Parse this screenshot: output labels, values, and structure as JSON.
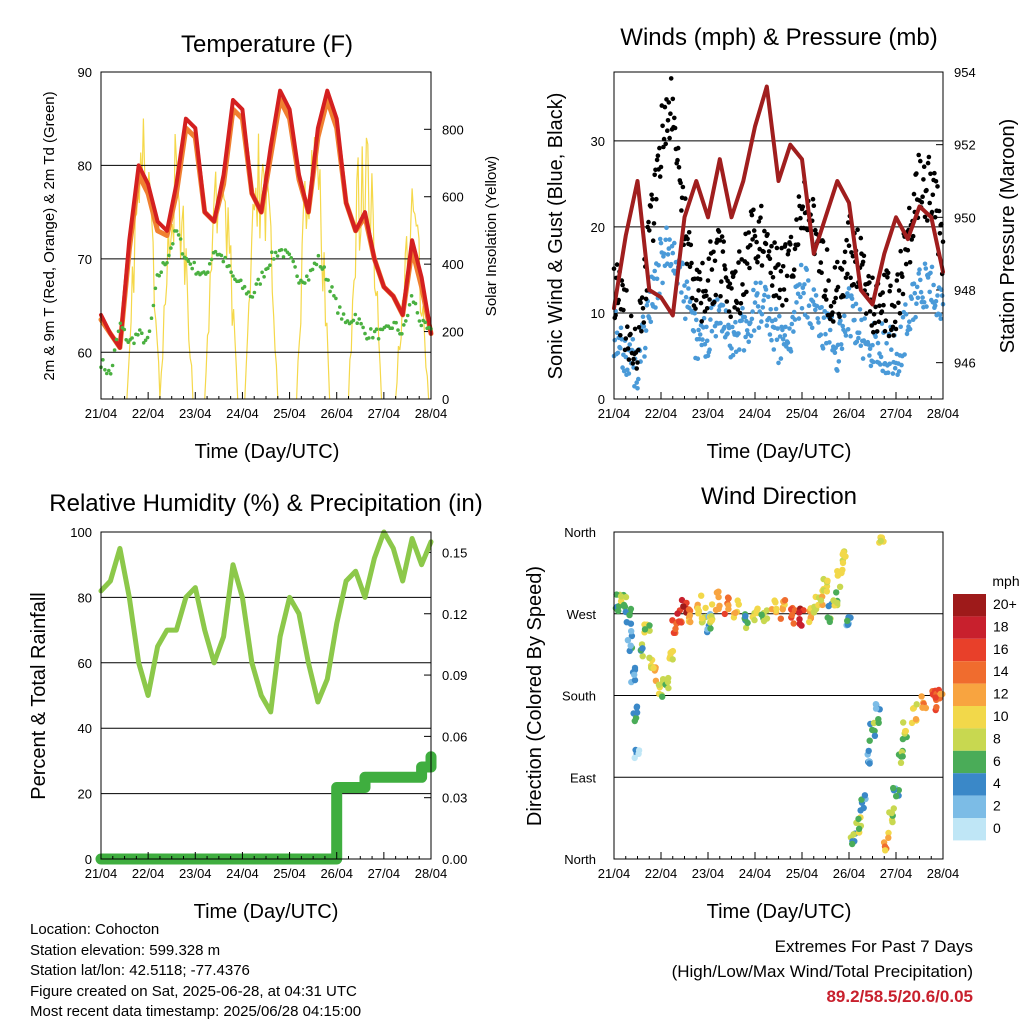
{
  "x_ticks": [
    "21/04",
    "22/04",
    "23/04",
    "24/04",
    "25/04",
    "26/04",
    "27/04",
    "28/04"
  ],
  "colors": {
    "temp2m": "#d42020",
    "temp9m": "#f08030",
    "dewpoint": "#4ab040",
    "solar": "#f5d84a",
    "gust": "#000000",
    "wind": "#4a9ad8",
    "pressure": "#a01e1e",
    "rh": "#8cc84a",
    "precip": "#3fae3f",
    "highlight": "#c8202d"
  },
  "info": {
    "location": "Location: Cohocton",
    "elevation": "Station elevation: 599.328 m",
    "latlon": "Station lat/lon: 42.5118; -77.4376",
    "created": "Figure created on Sat, 2025-06-28, at 04:31 UTC",
    "timestamp": "Most recent data timestamp: 2025/06/28 04:15:00"
  },
  "extremes": {
    "title": "Extremes For Past 7 Days",
    "subtitle": "(High/Low/Max Wind/Total Precipitation)",
    "values": "89.2/58.5/20.6/0.05"
  },
  "chart_data": [
    {
      "type": "line",
      "title": "Temperature (F)",
      "xlabel": "Time (Day/UTC)",
      "ylabel": "2m & 9m T (Red, Orange) & 2m Td (Green)",
      "y2label": "Solar Insolation (Yellow)",
      "ylim": [
        55,
        90
      ],
      "y2lim": [
        0,
        970
      ],
      "yticks": [
        "60",
        "70",
        "80",
        "90"
      ],
      "y2ticks": [
        "0",
        "200",
        "400",
        "600",
        "800"
      ],
      "x": [
        0,
        0.2,
        0.4,
        0.6,
        0.8,
        1.0,
        1.2,
        1.4,
        1.6,
        1.8,
        2.0,
        2.2,
        2.4,
        2.6,
        2.8,
        3.0,
        3.2,
        3.4,
        3.6,
        3.8,
        4.0,
        4.2,
        4.4,
        4.6,
        4.8,
        5.0,
        5.2,
        5.4,
        5.6,
        5.8,
        6.0,
        6.2,
        6.4,
        6.6,
        6.8,
        7.0
      ],
      "series": [
        {
          "name": "2m T",
          "values": [
            64,
            62,
            60.5,
            72,
            80,
            78,
            74,
            73,
            78,
            85,
            84,
            75,
            74,
            79,
            87,
            86,
            77,
            75,
            82,
            88,
            86,
            79,
            75,
            84,
            88,
            85,
            76,
            73,
            75,
            70,
            67,
            66,
            64,
            72,
            68,
            62
          ]
        },
        {
          "name": "9m T",
          "values": [
            63.5,
            62,
            60.5,
            71,
            79,
            77,
            73,
            72.5,
            77,
            84,
            83,
            75,
            74,
            78,
            86,
            85,
            77,
            75,
            81,
            87,
            85,
            78.5,
            75,
            83,
            87,
            84,
            76,
            73,
            74.5,
            70,
            67,
            66,
            64,
            71,
            67,
            62
          ]
        },
        {
          "name": "2m Td",
          "values": [
            59,
            57.5,
            63,
            61,
            62,
            61,
            68,
            70,
            73,
            70,
            69,
            68,
            71,
            70,
            68,
            67,
            66,
            68,
            70,
            71,
            70,
            68,
            68,
            70,
            68,
            65,
            63,
            64,
            62,
            62,
            62,
            63,
            62,
            66,
            63,
            62
          ]
        }
      ],
      "solar": {
        "name": "Solar Insolation",
        "peaks": [
          [
            0.9,
            860
          ],
          [
            1.6,
            800
          ],
          [
            2.55,
            790
          ],
          [
            3.4,
            860
          ],
          [
            4.5,
            940
          ],
          [
            5.6,
            920
          ],
          [
            6.6,
            650
          ]
        ]
      }
    },
    {
      "type": "scatter",
      "title": "Winds (mph) & Pressure (mb)",
      "xlabel": "Time (Day/UTC)",
      "ylabel": "Sonic Wind & Gust (Blue, Black)",
      "y2label": "Station Pressure (Maroon)",
      "ylim": [
        0,
        38
      ],
      "y2lim": [
        945,
        954
      ],
      "yticks": [
        "0",
        "10",
        "20",
        "30"
      ],
      "y2ticks": [
        "946",
        "948",
        "950",
        "952",
        "954"
      ],
      "x": [
        0,
        0.25,
        0.5,
        0.75,
        1.0,
        1.25,
        1.5,
        1.75,
        2.0,
        2.25,
        2.5,
        2.75,
        3.0,
        3.25,
        3.5,
        3.75,
        4.0,
        4.25,
        4.5,
        4.75,
        5.0,
        5.25,
        5.5,
        5.75,
        6.0,
        6.25,
        6.5,
        6.75,
        7.0
      ],
      "series": [
        {
          "name": "Gust",
          "values": [
            13,
            9,
            7,
            18,
            30,
            34,
            20,
            12,
            14,
            16,
            13,
            14,
            20,
            18,
            14,
            15,
            24,
            20,
            14,
            12,
            18,
            15,
            11,
            12,
            10,
            18,
            26,
            24,
            18
          ]
        },
        {
          "name": "Wind",
          "values": [
            8,
            5,
            4,
            10,
            16,
            18,
            12,
            7,
            8,
            9,
            7,
            8,
            11,
            10,
            7,
            8,
            13,
            11,
            8,
            6,
            10,
            8,
            6,
            6,
            5,
            9,
            13,
            13,
            10
          ]
        },
        {
          "name": "Pressure",
          "values": [
            947.5,
            949.5,
            951,
            948,
            947.8,
            947.3,
            950,
            951,
            950,
            951.6,
            950,
            951,
            952.5,
            953.6,
            951,
            952,
            951.6,
            949,
            950,
            951,
            950.4,
            948,
            947.6,
            949,
            950,
            949.4,
            950.3,
            950,
            948.5
          ]
        }
      ]
    },
    {
      "type": "line",
      "title": "Relative Humidity (%) & Precipitation (in)",
      "xlabel": "Time (Day/UTC)",
      "ylabel": "Percent & Total Rainfall",
      "ylim": [
        0,
        100
      ],
      "y2lim": [
        0,
        0.16
      ],
      "yticks": [
        "0",
        "20",
        "40",
        "60",
        "80",
        "100"
      ],
      "y2ticks": [
        "0.00",
        "0.03",
        "0.06",
        "0.09",
        "0.12",
        "0.15"
      ],
      "x": [
        0,
        0.2,
        0.4,
        0.6,
        0.8,
        1.0,
        1.2,
        1.4,
        1.6,
        1.8,
        2.0,
        2.2,
        2.4,
        2.6,
        2.8,
        3.0,
        3.2,
        3.4,
        3.6,
        3.8,
        4.0,
        4.2,
        4.4,
        4.6,
        4.8,
        5.0,
        5.2,
        5.4,
        5.6,
        5.8,
        6.0,
        6.2,
        6.4,
        6.6,
        6.8,
        7.0
      ],
      "series": [
        {
          "name": "RH",
          "values": [
            82,
            85,
            95,
            80,
            60,
            50,
            65,
            70,
            70,
            80,
            83,
            70,
            60,
            68,
            90,
            80,
            60,
            50,
            45,
            68,
            80,
            75,
            60,
            48,
            55,
            72,
            85,
            88,
            80,
            92,
            100,
            95,
            85,
            98,
            90,
            97
          ]
        },
        {
          "name": "Precip",
          "values": [
            0,
            0,
            0,
            0,
            0,
            0,
            0,
            0,
            0,
            0,
            0,
            0,
            0,
            0,
            0,
            0,
            0,
            0,
            0,
            0,
            0,
            0,
            0,
            0,
            0,
            0.035,
            0.035,
            0.035,
            0.04,
            0.04,
            0.04,
            0.04,
            0.04,
            0.04,
            0.045,
            0.05
          ]
        }
      ]
    },
    {
      "type": "scatter",
      "title": "Wind Direction",
      "xlabel": "Time (Day/UTC)",
      "ylabel": "Direction (Colored By Speed)",
      "yticks": [
        "North",
        "East",
        "South",
        "West",
        "North"
      ],
      "ylim": [
        0,
        360
      ],
      "legend": {
        "title": "mph",
        "labels": [
          "20+",
          "18",
          "16",
          "14",
          "12",
          "10",
          "8",
          "6",
          "4",
          "2",
          "0"
        ],
        "colors": [
          "#9e1a1a",
          "#c8202d",
          "#e8402a",
          "#f06c2e",
          "#f8a440",
          "#f2d84a",
          "#c8d850",
          "#4aac58",
          "#3a88c8",
          "#7cbce6",
          "#bfe6f6"
        ]
      },
      "points": [
        [
          0.1,
          282,
          6
        ],
        [
          0.2,
          280,
          8
        ],
        [
          0.3,
          270,
          5
        ],
        [
          0.35,
          240,
          4
        ],
        [
          0.4,
          200,
          3
        ],
        [
          0.45,
          160,
          4
        ],
        [
          0.5,
          120,
          2
        ],
        [
          0.6,
          230,
          6
        ],
        [
          0.7,
          250,
          8
        ],
        [
          0.8,
          220,
          9
        ],
        [
          0.9,
          200,
          10
        ],
        [
          1.0,
          185,
          8
        ],
        [
          1.1,
          190,
          7
        ],
        [
          1.2,
          230,
          10
        ],
        [
          1.3,
          260,
          14
        ],
        [
          1.4,
          270,
          16
        ],
        [
          1.5,
          280,
          18
        ],
        [
          1.6,
          265,
          12
        ],
        [
          1.8,
          280,
          11
        ],
        [
          1.9,
          270,
          8
        ],
        [
          2.0,
          260,
          4
        ],
        [
          2.1,
          270,
          9
        ],
        [
          2.2,
          285,
          12
        ],
        [
          2.4,
          280,
          14
        ],
        [
          2.6,
          275,
          10
        ],
        [
          2.8,
          260,
          6
        ],
        [
          3.0,
          270,
          9
        ],
        [
          3.2,
          265,
          7
        ],
        [
          3.4,
          280,
          10
        ],
        [
          3.6,
          275,
          12
        ],
        [
          3.8,
          270,
          15
        ],
        [
          4.0,
          265,
          18
        ],
        [
          4.2,
          270,
          12
        ],
        [
          4.3,
          280,
          8
        ],
        [
          4.4,
          290,
          10
        ],
        [
          4.5,
          300,
          9
        ],
        [
          4.6,
          270,
          6
        ],
        [
          4.7,
          290,
          8
        ],
        [
          4.8,
          310,
          10
        ],
        [
          4.9,
          330,
          9
        ],
        [
          5.0,
          260,
          4
        ],
        [
          5.1,
          20,
          6
        ],
        [
          5.2,
          40,
          8
        ],
        [
          5.3,
          60,
          4
        ],
        [
          5.4,
          110,
          4
        ],
        [
          5.5,
          140,
          6
        ],
        [
          5.6,
          160,
          4
        ],
        [
          5.7,
          350,
          10
        ],
        [
          5.8,
          20,
          12
        ],
        [
          5.9,
          50,
          8
        ],
        [
          6.0,
          80,
          4
        ],
        [
          6.1,
          110,
          6
        ],
        [
          6.2,
          140,
          8
        ],
        [
          6.4,
          160,
          10
        ],
        [
          6.6,
          170,
          12
        ],
        [
          6.8,
          175,
          14
        ],
        [
          6.9,
          180,
          16
        ],
        [
          7.0,
          185,
          12
        ]
      ]
    }
  ]
}
